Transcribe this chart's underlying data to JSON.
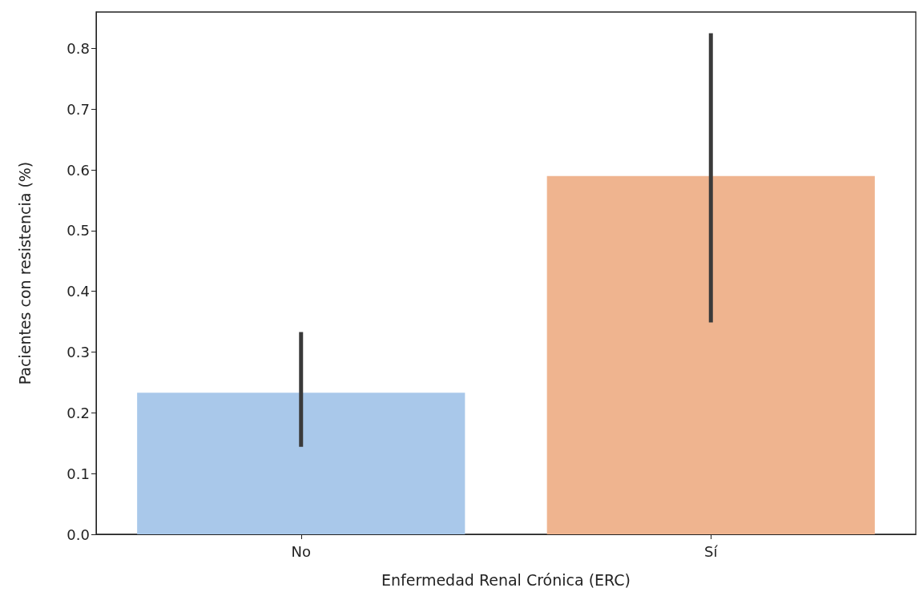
{
  "chart_data": {
    "type": "bar",
    "xlabel": "Enfermedad Renal Crónica (ERC)",
    "ylabel": "Pacientes con resistencia (%)",
    "categories": [
      "No",
      "Sí"
    ],
    "values": [
      0.233,
      0.59
    ],
    "colors": [
      "#a9c8ea",
      "#efb48f"
    ],
    "errors": [
      [
        0.144,
        0.333
      ],
      [
        0.349,
        0.825
      ]
    ],
    "ylim": [
      0,
      0.86
    ],
    "yticks": [
      {
        "value": 0,
        "label": "0.0"
      },
      0.1,
      0.2,
      0.3,
      0.4,
      0.5,
      0.6,
      0.7,
      0.8
    ],
    "grid": false
  }
}
